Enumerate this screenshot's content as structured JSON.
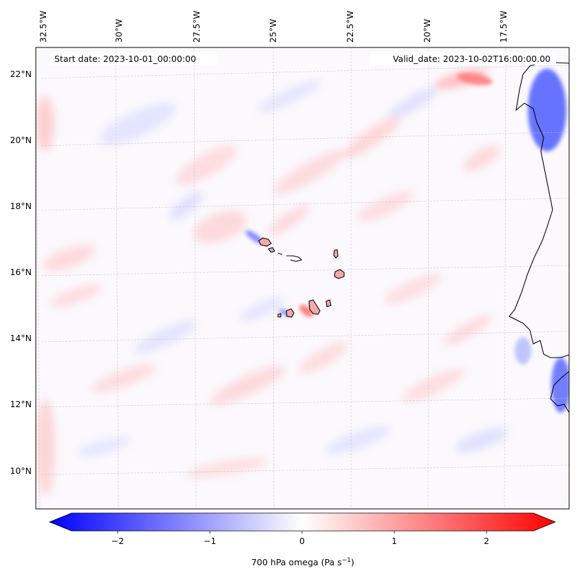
{
  "map": {
    "start_date_label": "Start date: 2023-10-01_00:00:00",
    "valid_date_label": "Valid_date: 2023-10-02T16:00:00.00",
    "lon_ticks": [
      "32.5°W",
      "30°W",
      "27.5°W",
      "25°W",
      "22.5°W",
      "20°W",
      "17.5°W"
    ],
    "lat_ticks": [
      "22°N",
      "20°N",
      "18°N",
      "16°N",
      "14°N",
      "12°N",
      "10°N"
    ],
    "gridlines": true,
    "field_variable": "700 hPa omega",
    "colormap": "bwr"
  },
  "colorbar": {
    "ticks": [
      "−2",
      "−1",
      "0",
      "1",
      "2"
    ],
    "tick_values": [
      -2,
      -1,
      0,
      1,
      2
    ],
    "range": [
      -2.5,
      2.5
    ],
    "extend": "both",
    "label_main": "700 hPa omega (Pa s",
    "label_sup": "−1",
    "label_end": ")"
  },
  "colors": {
    "negative": "#0000ff",
    "zero": "#ffffff",
    "positive": "#ff0000"
  }
}
